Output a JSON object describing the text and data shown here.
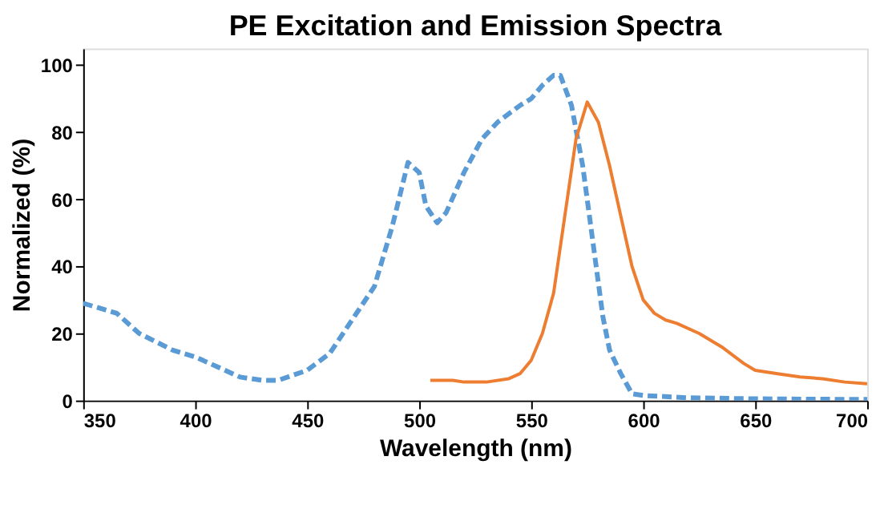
{
  "chart_data": {
    "type": "line",
    "title": "PE Excitation and Emission Spectra",
    "xlabel": "Wavelength (nm)",
    "ylabel": "Normalized (%)",
    "xlim": [
      350,
      700
    ],
    "xticks": [
      350,
      400,
      450,
      500,
      550,
      600,
      650,
      700
    ],
    "ylim": [
      0,
      105
    ],
    "yticks": [
      0,
      20,
      40,
      60,
      80,
      100
    ],
    "grid": false,
    "series": [
      {
        "color": "#5b9bd5",
        "line_style": "dashed",
        "x": [
          350,
          365,
          375,
          390,
          400,
          410,
          420,
          430,
          437,
          450,
          460,
          470,
          480,
          488,
          495,
          500,
          503,
          508,
          512,
          520,
          528,
          535,
          545,
          550,
          555,
          560,
          563,
          568,
          573,
          578,
          582,
          585,
          590,
          595,
          600,
          620,
          650,
          700
        ],
        "values": [
          29,
          26,
          20,
          15,
          13,
          10,
          7,
          6,
          6,
          9,
          14,
          24,
          34,
          52,
          71,
          68,
          58,
          53,
          56,
          68,
          78,
          83,
          88,
          90,
          94,
          97,
          97,
          88,
          70,
          45,
          25,
          15,
          8,
          2,
          1.5,
          0.8,
          0.5,
          0.3
        ]
      },
      {
        "color": "#ed7d31",
        "line_style": "solid",
        "x": [
          505,
          515,
          520,
          530,
          540,
          545,
          550,
          555,
          560,
          565,
          570,
          575,
          580,
          585,
          590,
          595,
          600,
          605,
          610,
          615,
          625,
          635,
          645,
          650,
          660,
          670,
          680,
          690,
          700
        ],
        "values": [
          6,
          6,
          5.5,
          5.5,
          6.5,
          8,
          12,
          20,
          32,
          55,
          78,
          89,
          83,
          70,
          55,
          40,
          30,
          26,
          24,
          23,
          20,
          16,
          11,
          9,
          8,
          7,
          6.5,
          5.5,
          5
        ]
      }
    ]
  }
}
